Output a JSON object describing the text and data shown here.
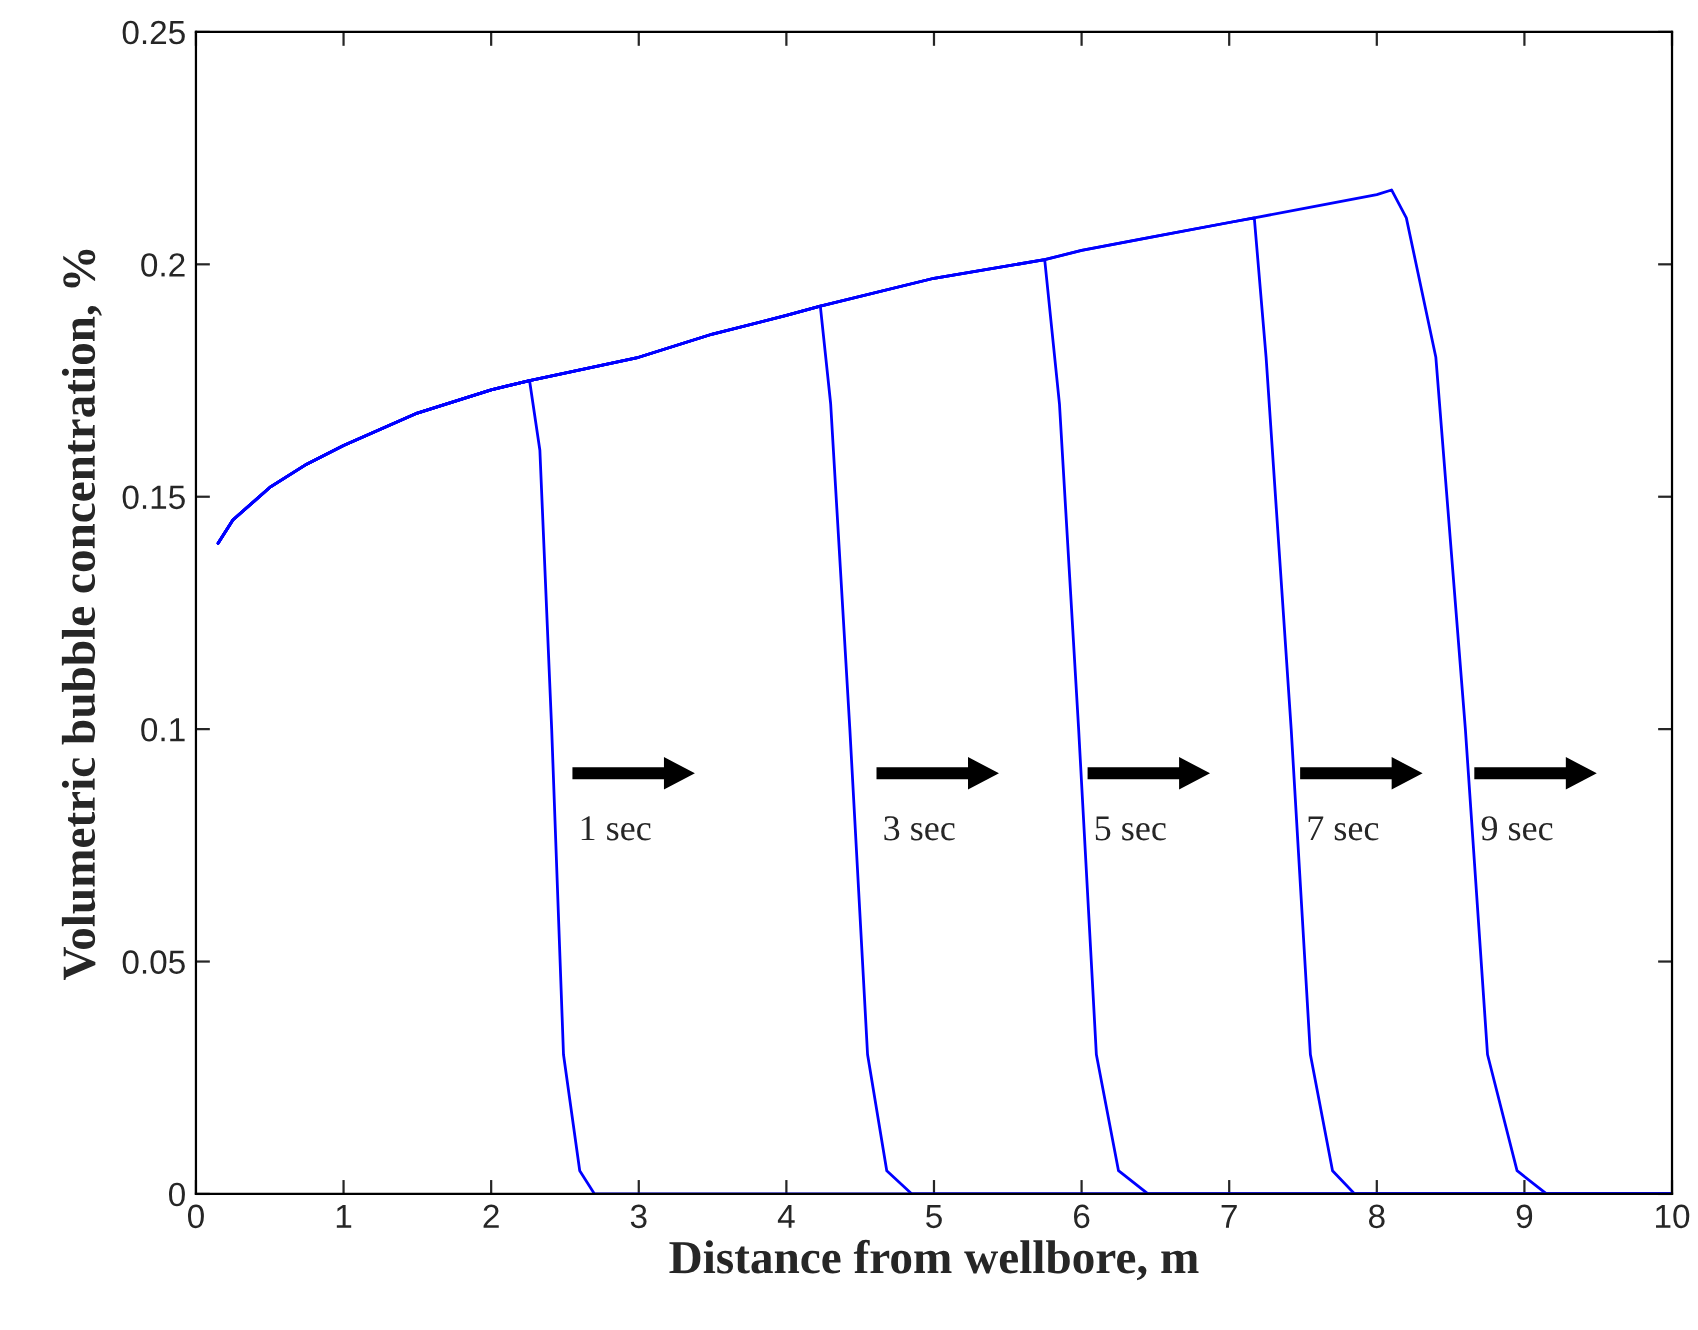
{
  "chart_data": {
    "type": "line",
    "xlabel": "Distance from wellbore, m",
    "ylabel": "Volumetric bubble concentration, %",
    "xlim": [
      0,
      10
    ],
    "ylim": [
      0,
      0.25
    ],
    "xticks": [
      0,
      1,
      2,
      3,
      4,
      5,
      6,
      7,
      8,
      9,
      10
    ],
    "yticks": [
      0,
      0.05,
      0.1,
      0.15,
      0.2,
      0.25
    ],
    "grid": false,
    "marker": "none",
    "line_style": "solid",
    "series": [
      {
        "color": "#0000ff",
        "x": [
          0.15,
          0.25,
          0.5,
          0.75,
          1,
          1.5,
          2,
          2.26,
          2.33,
          2.41,
          2.49,
          2.6,
          2.7,
          10
        ],
        "values": [
          0.14,
          0.145,
          0.152,
          0.157,
          0.161,
          0.168,
          0.173,
          0.175,
          0.16,
          0.1,
          0.03,
          0.005,
          0,
          0
        ]
      },
      {
        "color": "#0000ff",
        "x": [
          0.15,
          0.25,
          0.5,
          0.75,
          1,
          1.5,
          2,
          2.26,
          3,
          3.5,
          4,
          4.23,
          4.3,
          4.43,
          4.55,
          4.68,
          4.85,
          10
        ],
        "values": [
          0.14,
          0.145,
          0.152,
          0.157,
          0.161,
          0.168,
          0.173,
          0.175,
          0.18,
          0.185,
          0.189,
          0.191,
          0.17,
          0.1,
          0.03,
          0.005,
          0,
          0
        ]
      },
      {
        "color": "#0000ff",
        "x": [
          0.15,
          0.25,
          0.5,
          0.75,
          1,
          1.5,
          2,
          2.26,
          3,
          3.5,
          4,
          4.23,
          5,
          5.75,
          5.85,
          5.98,
          6.1,
          6.25,
          6.45,
          10
        ],
        "values": [
          0.14,
          0.145,
          0.152,
          0.157,
          0.161,
          0.168,
          0.173,
          0.175,
          0.18,
          0.185,
          0.189,
          0.191,
          0.197,
          0.201,
          0.17,
          0.1,
          0.03,
          0.005,
          0,
          0
        ]
      },
      {
        "color": "#0000ff",
        "x": [
          0.15,
          0.25,
          0.5,
          0.75,
          1,
          1.5,
          2,
          2.26,
          3,
          3.5,
          4,
          4.23,
          5,
          5.75,
          6,
          6.5,
          7,
          7.17,
          7.25,
          7.42,
          7.55,
          7.7,
          7.85,
          10
        ],
        "values": [
          0.14,
          0.145,
          0.152,
          0.157,
          0.161,
          0.168,
          0.173,
          0.175,
          0.18,
          0.185,
          0.189,
          0.191,
          0.197,
          0.201,
          0.203,
          0.206,
          0.209,
          0.21,
          0.18,
          0.1,
          0.03,
          0.005,
          0,
          0
        ]
      },
      {
        "color": "#0000ff",
        "x": [
          0.15,
          0.25,
          0.5,
          0.75,
          1,
          1.5,
          2,
          2.26,
          3,
          3.5,
          4,
          4.23,
          5,
          5.75,
          6,
          6.5,
          7,
          7.17,
          7.5,
          8,
          8.1,
          8.2,
          8.4,
          8.6,
          8.75,
          8.95,
          9.15,
          10
        ],
        "values": [
          0.14,
          0.145,
          0.152,
          0.157,
          0.161,
          0.168,
          0.173,
          0.175,
          0.18,
          0.185,
          0.189,
          0.191,
          0.197,
          0.201,
          0.203,
          0.206,
          0.209,
          0.21,
          0.212,
          0.215,
          0.216,
          0.21,
          0.18,
          0.1,
          0.03,
          0.005,
          0,
          0
        ]
      }
    ],
    "annotations": [
      "1 sec",
      "3 sec",
      "5 sec",
      "7 sec",
      "9 sec"
    ]
  }
}
